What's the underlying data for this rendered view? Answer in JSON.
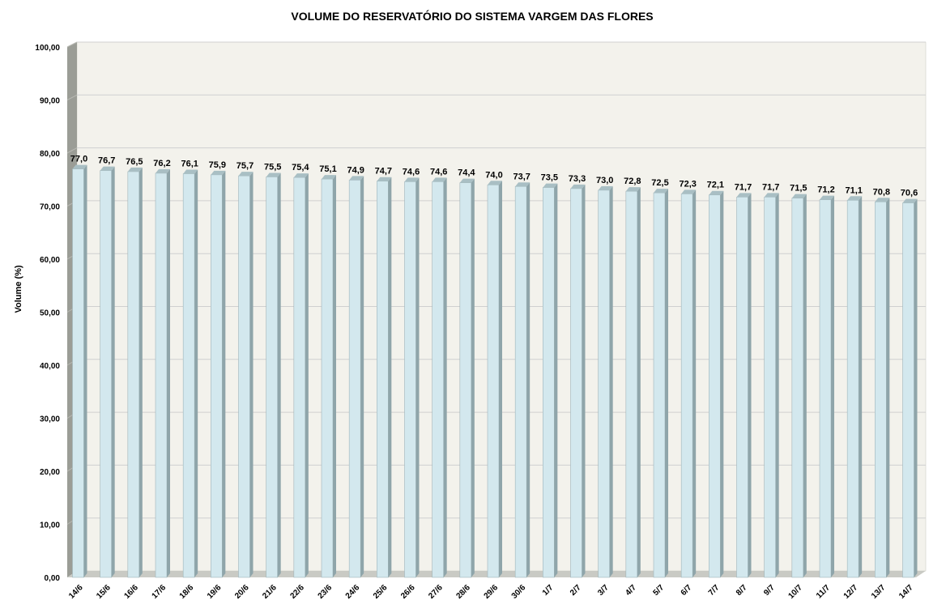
{
  "chart_data": {
    "type": "bar",
    "title": "VOLUME DO RESERVATÓRIO DO SISTEMA VARGEM DAS FLORES",
    "xlabel": "",
    "ylabel": "Volume (%)",
    "ylim": [
      0,
      100
    ],
    "y_ticks": [
      "0,00",
      "10,00",
      "20,00",
      "30,00",
      "40,00",
      "50,00",
      "60,00",
      "70,00",
      "80,00",
      "90,00",
      "100,00"
    ],
    "categories": [
      "14/6",
      "15/6",
      "16/6",
      "17/6",
      "18/6",
      "19/6",
      "20/6",
      "21/6",
      "22/6",
      "23/6",
      "24/6",
      "25/6",
      "26/6",
      "27/6",
      "28/6",
      "29/6",
      "30/6",
      "1/7",
      "2/7",
      "3/7",
      "4/7",
      "5/7",
      "6/7",
      "7/7",
      "8/7",
      "9/7",
      "10/7",
      "11/7",
      "12/7",
      "13/7",
      "14/7"
    ],
    "values": [
      77.0,
      76.7,
      76.5,
      76.2,
      76.1,
      75.9,
      75.7,
      75.5,
      75.4,
      75.1,
      74.9,
      74.7,
      74.6,
      74.6,
      74.4,
      74.0,
      73.7,
      73.5,
      73.3,
      73.0,
      72.8,
      72.5,
      72.3,
      72.1,
      71.7,
      71.7,
      71.5,
      71.2,
      71.1,
      70.8,
      70.6
    ],
    "data_labels": [
      "77,0",
      "76,7",
      "76,5",
      "76,2",
      "76,1",
      "75,9",
      "75,7",
      "75,5",
      "75,4",
      "75,1",
      "74,9",
      "74,7",
      "74,6",
      "74,6",
      "74,4",
      "74,0",
      "73,7",
      "73,5",
      "73,3",
      "73,0",
      "72,8",
      "72,5",
      "72,3",
      "72,1",
      "71,7",
      "71,7",
      "71,5",
      "71,2",
      "71,1",
      "70,8",
      "70,6"
    ],
    "grid": true,
    "legend": "none",
    "colors": {
      "bar_front": "#d3e8ee",
      "bar_side": "#8fa5aa",
      "bar_top": "#a9bfc4",
      "plot_back": "#f3f2ec",
      "side_wall": "#9b9d96",
      "floor": "#c9cac4",
      "gridline": "#d0d0d0"
    }
  }
}
